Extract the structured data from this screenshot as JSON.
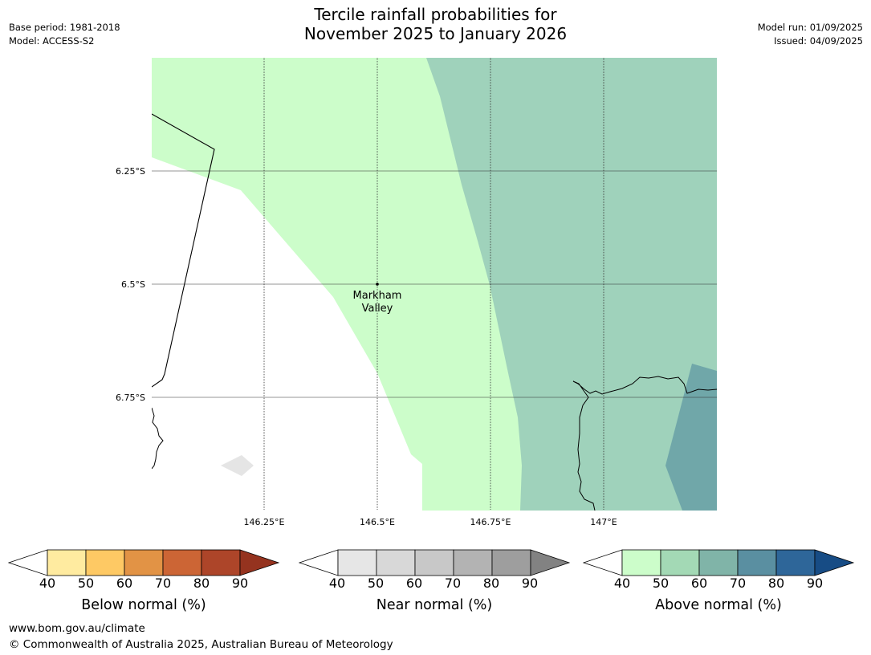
{
  "title_line1": "Tercile rainfall probabilities for",
  "title_line2": "November 2025 to January 2026",
  "meta_left": [
    "Base period: 1981-2018",
    "Model: ACCESS-S2"
  ],
  "meta_right": [
    "Model run: 01/09/2025",
    "Issued: 04/09/2025"
  ],
  "map": {
    "lat_labels": [
      "6.25°S",
      "6.5°S",
      "6.75°S"
    ],
    "lon_labels": [
      "146.25°E",
      "146.5°E",
      "146.75°E",
      "147°E"
    ],
    "location_label_line1": "Markham",
    "location_label_line2": "Valley",
    "colors": {
      "above_40_50": "#ccfdca",
      "above_50_60": "#9fd2bb",
      "above_60_70": "#70a7a9",
      "near_40_50": "#e5e5e5"
    }
  },
  "colorbars": [
    {
      "title": "Below normal (%)",
      "ticks": [
        "40",
        "50",
        "60",
        "70",
        "80",
        "90"
      ],
      "colors": [
        "#ffeba0",
        "#fec964",
        "#e29345",
        "#cc6535",
        "#ad4529"
      ],
      "over_color": "#95331f"
    },
    {
      "title": "Near normal (%)",
      "ticks": [
        "40",
        "50",
        "60",
        "70",
        "80",
        "90"
      ],
      "colors": [
        "#e6e6e6",
        "#d8d8d8",
        "#c8c8c8",
        "#b3b3b3",
        "#9e9e9e"
      ],
      "over_color": "#828282"
    },
    {
      "title": "Above normal (%)",
      "ticks": [
        "40",
        "50",
        "60",
        "70",
        "80",
        "90"
      ],
      "colors": [
        "#ccfdca",
        "#a3d9b5",
        "#80b4a8",
        "#5a8fa1",
        "#2e6699"
      ],
      "over_color": "#174c85"
    }
  ],
  "footer": {
    "url": "www.bom.gov.au/climate",
    "copyright": "© Commonwealth of Australia 2025, Australian Bureau of Meteorology"
  }
}
